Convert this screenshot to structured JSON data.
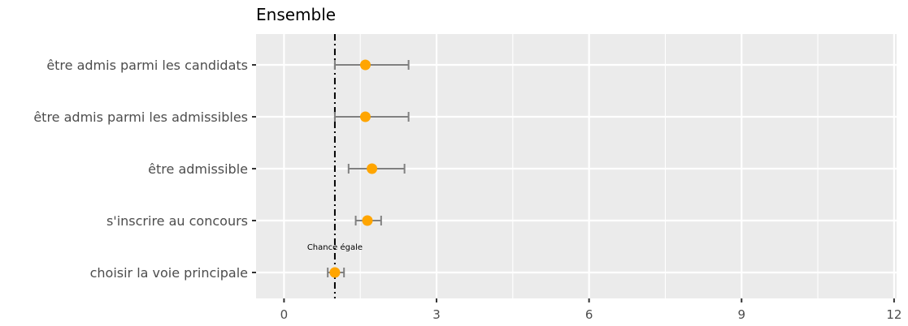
{
  "chart_data": {
    "type": "scatter",
    "title": "Ensemble",
    "xlabel": "",
    "ylabel": "",
    "xlim": [
      -0.55,
      12.05
    ],
    "x_ticks": [
      0,
      3,
      6,
      9,
      12
    ],
    "x_tick_labels": [
      "0",
      "3",
      "6",
      "9",
      "12"
    ],
    "grid": true,
    "reference_line": {
      "x": 1,
      "label": "Chance égale",
      "style": "dashdot"
    },
    "categories": [
      "être admis parmi les candidats",
      "être admis parmi les admissibles",
      "être admissible",
      "s'inscrire au concours",
      "choisir la voie principale"
    ],
    "points": [
      {
        "estimate": 1.6,
        "low": 1.0,
        "high": 2.45
      },
      {
        "estimate": 1.6,
        "low": 1.0,
        "high": 2.45
      },
      {
        "estimate": 1.73,
        "low": 1.27,
        "high": 2.37
      },
      {
        "estimate": 1.64,
        "low": 1.41,
        "high": 1.91
      },
      {
        "estimate": 1.0,
        "low": 0.86,
        "high": 1.18
      }
    ],
    "colors": {
      "panel": "#ebebeb",
      "grid": "#ffffff",
      "point": "#ffa500",
      "errorbar": "#808080",
      "refline": "#000000"
    }
  }
}
